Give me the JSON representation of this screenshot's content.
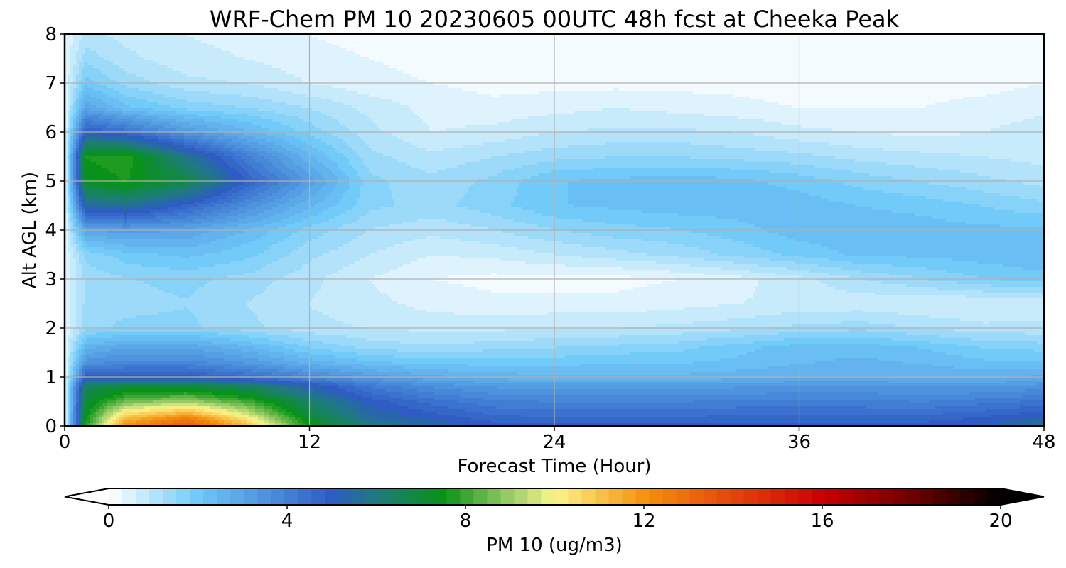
{
  "chart_data": {
    "type": "heatmap",
    "title": "WRF-Chem PM 10  20230605 00UTC 48h fcst at Cheeka Peak",
    "xlabel": "Forecast Time (Hour)",
    "ylabel": "Alt AGL (km)",
    "x_ticks": [
      "0",
      "12",
      "24",
      "36",
      "48"
    ],
    "y_ticks": [
      "0",
      "1",
      "2",
      "3",
      "4",
      "5",
      "6",
      "7",
      "8"
    ],
    "xlim": [
      0,
      48
    ],
    "ylim": [
      0,
      8
    ],
    "grid": true,
    "x": [
      0,
      1,
      3,
      6,
      9,
      12,
      15,
      18,
      21,
      24,
      27,
      30,
      33,
      36,
      39,
      42,
      45,
      48
    ],
    "y": [
      0,
      0.1,
      0.25,
      0.5,
      0.8,
      1.0,
      1.3,
      1.6,
      2.0,
      2.5,
      3.0,
      3.5,
      4.0,
      4.5,
      5.0,
      5.5,
      6.0,
      6.5,
      7.0,
      7.5,
      8.0
    ],
    "z": [
      [
        0.3,
        7.5,
        12.0,
        13.5,
        11.0,
        7.5,
        6.0,
        5.5,
        5.0,
        5.0,
        5.0,
        5.0,
        5.0,
        5.0,
        5.0,
        5.0,
        5.2,
        5.8
      ],
      [
        0.3,
        7.5,
        11.5,
        13.0,
        10.5,
        7.2,
        5.7,
        5.2,
        4.8,
        4.7,
        4.7,
        4.7,
        4.8,
        4.8,
        4.8,
        4.8,
        5.0,
        5.5
      ],
      [
        0.3,
        7.3,
        10.5,
        11.5,
        9.5,
        6.8,
        5.4,
        4.9,
        4.5,
        4.4,
        4.4,
        4.4,
        4.5,
        4.5,
        4.5,
        4.5,
        4.7,
        5.0
      ],
      [
        0.3,
        7.0,
        8.5,
        9.0,
        8.0,
        6.3,
        5.0,
        4.4,
        4.0,
        3.9,
        3.9,
        3.9,
        4.0,
        4.0,
        4.0,
        3.9,
        4.1,
        4.3
      ],
      [
        0.3,
        6.5,
        7.0,
        7.0,
        6.5,
        5.3,
        4.2,
        3.6,
        3.3,
        3.2,
        3.2,
        3.2,
        3.3,
        3.4,
        3.4,
        3.3,
        3.3,
        3.5
      ],
      [
        0.3,
        5.0,
        5.0,
        5.0,
        4.5,
        3.8,
        3.2,
        2.8,
        2.6,
        2.5,
        2.5,
        2.5,
        2.6,
        2.7,
        2.7,
        2.7,
        2.6,
        2.8
      ],
      [
        0.3,
        3.5,
        3.8,
        3.8,
        3.3,
        2.6,
        2.2,
        2.0,
        2.0,
        2.0,
        2.1,
        2.1,
        2.2,
        2.4,
        2.5,
        2.4,
        2.2,
        2.2
      ],
      [
        0.3,
        2.6,
        3.0,
        3.0,
        2.5,
        1.8,
        1.4,
        1.3,
        1.4,
        1.5,
        1.6,
        1.7,
        2.0,
        2.3,
        2.3,
        2.1,
        1.8,
        1.7
      ],
      [
        0.3,
        1.4,
        1.6,
        1.6,
        1.3,
        1.0,
        0.9,
        0.8,
        0.8,
        0.9,
        0.9,
        1.0,
        1.1,
        1.3,
        1.4,
        1.2,
        1.0,
        1.0
      ],
      [
        0.3,
        1.3,
        1.4,
        1.5,
        1.2,
        0.9,
        0.7,
        0.5,
        0.4,
        0.4,
        0.4,
        0.5,
        0.6,
        0.7,
        0.7,
        0.6,
        0.6,
        0.7
      ],
      [
        0.3,
        1.3,
        1.5,
        1.6,
        1.4,
        1.0,
        0.6,
        0.3,
        0.2,
        0.2,
        0.2,
        0.3,
        0.5,
        0.8,
        1.2,
        1.5,
        1.8,
        2.0
      ],
      [
        0.3,
        1.6,
        2.0,
        2.2,
        1.9,
        1.3,
        0.9,
        0.6,
        0.7,
        0.9,
        1.1,
        1.3,
        1.6,
        1.9,
        2.2,
        2.2,
        2.3,
        2.4
      ],
      [
        0.3,
        3.0,
        3.2,
        3.0,
        2.4,
        1.7,
        1.2,
        1.0,
        1.2,
        1.5,
        1.7,
        1.8,
        2.0,
        2.3,
        2.4,
        2.3,
        2.2,
        2.2
      ],
      [
        0.3,
        5.5,
        5.8,
        4.8,
        3.6,
        2.5,
        1.6,
        1.4,
        1.7,
        2.1,
        2.2,
        2.3,
        2.3,
        2.3,
        2.1,
        2.0,
        1.8,
        1.6
      ],
      [
        0.3,
        7.3,
        7.6,
        6.8,
        4.8,
        3.2,
        1.6,
        1.3,
        1.6,
        2.1,
        2.2,
        2.3,
        2.2,
        2.0,
        1.7,
        1.5,
        1.3,
        1.1
      ],
      [
        0.3,
        7.6,
        7.8,
        5.8,
        4.0,
        2.5,
        1.3,
        1.0,
        1.2,
        1.4,
        1.5,
        1.5,
        1.4,
        1.3,
        1.1,
        1.0,
        0.9,
        0.8
      ],
      [
        0.3,
        5.0,
        4.5,
        3.3,
        2.5,
        1.7,
        1.0,
        0.6,
        0.7,
        0.9,
        1.0,
        1.0,
        0.9,
        0.7,
        0.6,
        0.5,
        0.6,
        0.8
      ],
      [
        0.3,
        3.0,
        2.2,
        1.7,
        1.5,
        1.2,
        0.8,
        0.5,
        0.4,
        0.5,
        0.6,
        0.5,
        0.4,
        0.3,
        0.3,
        0.3,
        0.4,
        0.5
      ],
      [
        0.3,
        2.0,
        1.4,
        1.0,
        0.9,
        0.6,
        0.4,
        0.3,
        0.2,
        0.2,
        0.2,
        0.2,
        0.2,
        0.1,
        0.1,
        0.2,
        0.2,
        0.3
      ],
      [
        0.3,
        1.4,
        1.0,
        0.7,
        0.6,
        0.4,
        0.3,
        0.2,
        0.1,
        0.1,
        0.1,
        0.1,
        0.1,
        0.1,
        0.1,
        0.1,
        0.1,
        0.2
      ],
      [
        0.3,
        1.0,
        0.8,
        0.6,
        0.5,
        0.3,
        0.2,
        0.1,
        0.1,
        0.1,
        0.1,
        0.1,
        0.1,
        0.1,
        0.1,
        0.1,
        0.1,
        0.1
      ]
    ],
    "colorbar": {
      "label": "PM 10  (ug/m3)",
      "ticks": [
        "0",
        "4",
        "8",
        "12",
        "16",
        "20"
      ],
      "range": [
        0,
        20
      ],
      "levels": 66,
      "extend": "both",
      "orientation": "horizontal",
      "stops": [
        {
          "v": 0,
          "c": "#ffffff"
        },
        {
          "v": 2,
          "c": "#6fc9f8"
        },
        {
          "v": 5,
          "c": "#2e5cc4"
        },
        {
          "v": 6,
          "c": "#1f7a80"
        },
        {
          "v": 7.5,
          "c": "#079314"
        },
        {
          "v": 9,
          "c": "#9ccc68"
        },
        {
          "v": 10,
          "c": "#fbf58c"
        },
        {
          "v": 12,
          "c": "#f6920e"
        },
        {
          "v": 14,
          "c": "#e3450d"
        },
        {
          "v": 16,
          "c": "#c90000"
        },
        {
          "v": 18,
          "c": "#6e0000"
        },
        {
          "v": 20,
          "c": "#000000"
        }
      ]
    }
  }
}
